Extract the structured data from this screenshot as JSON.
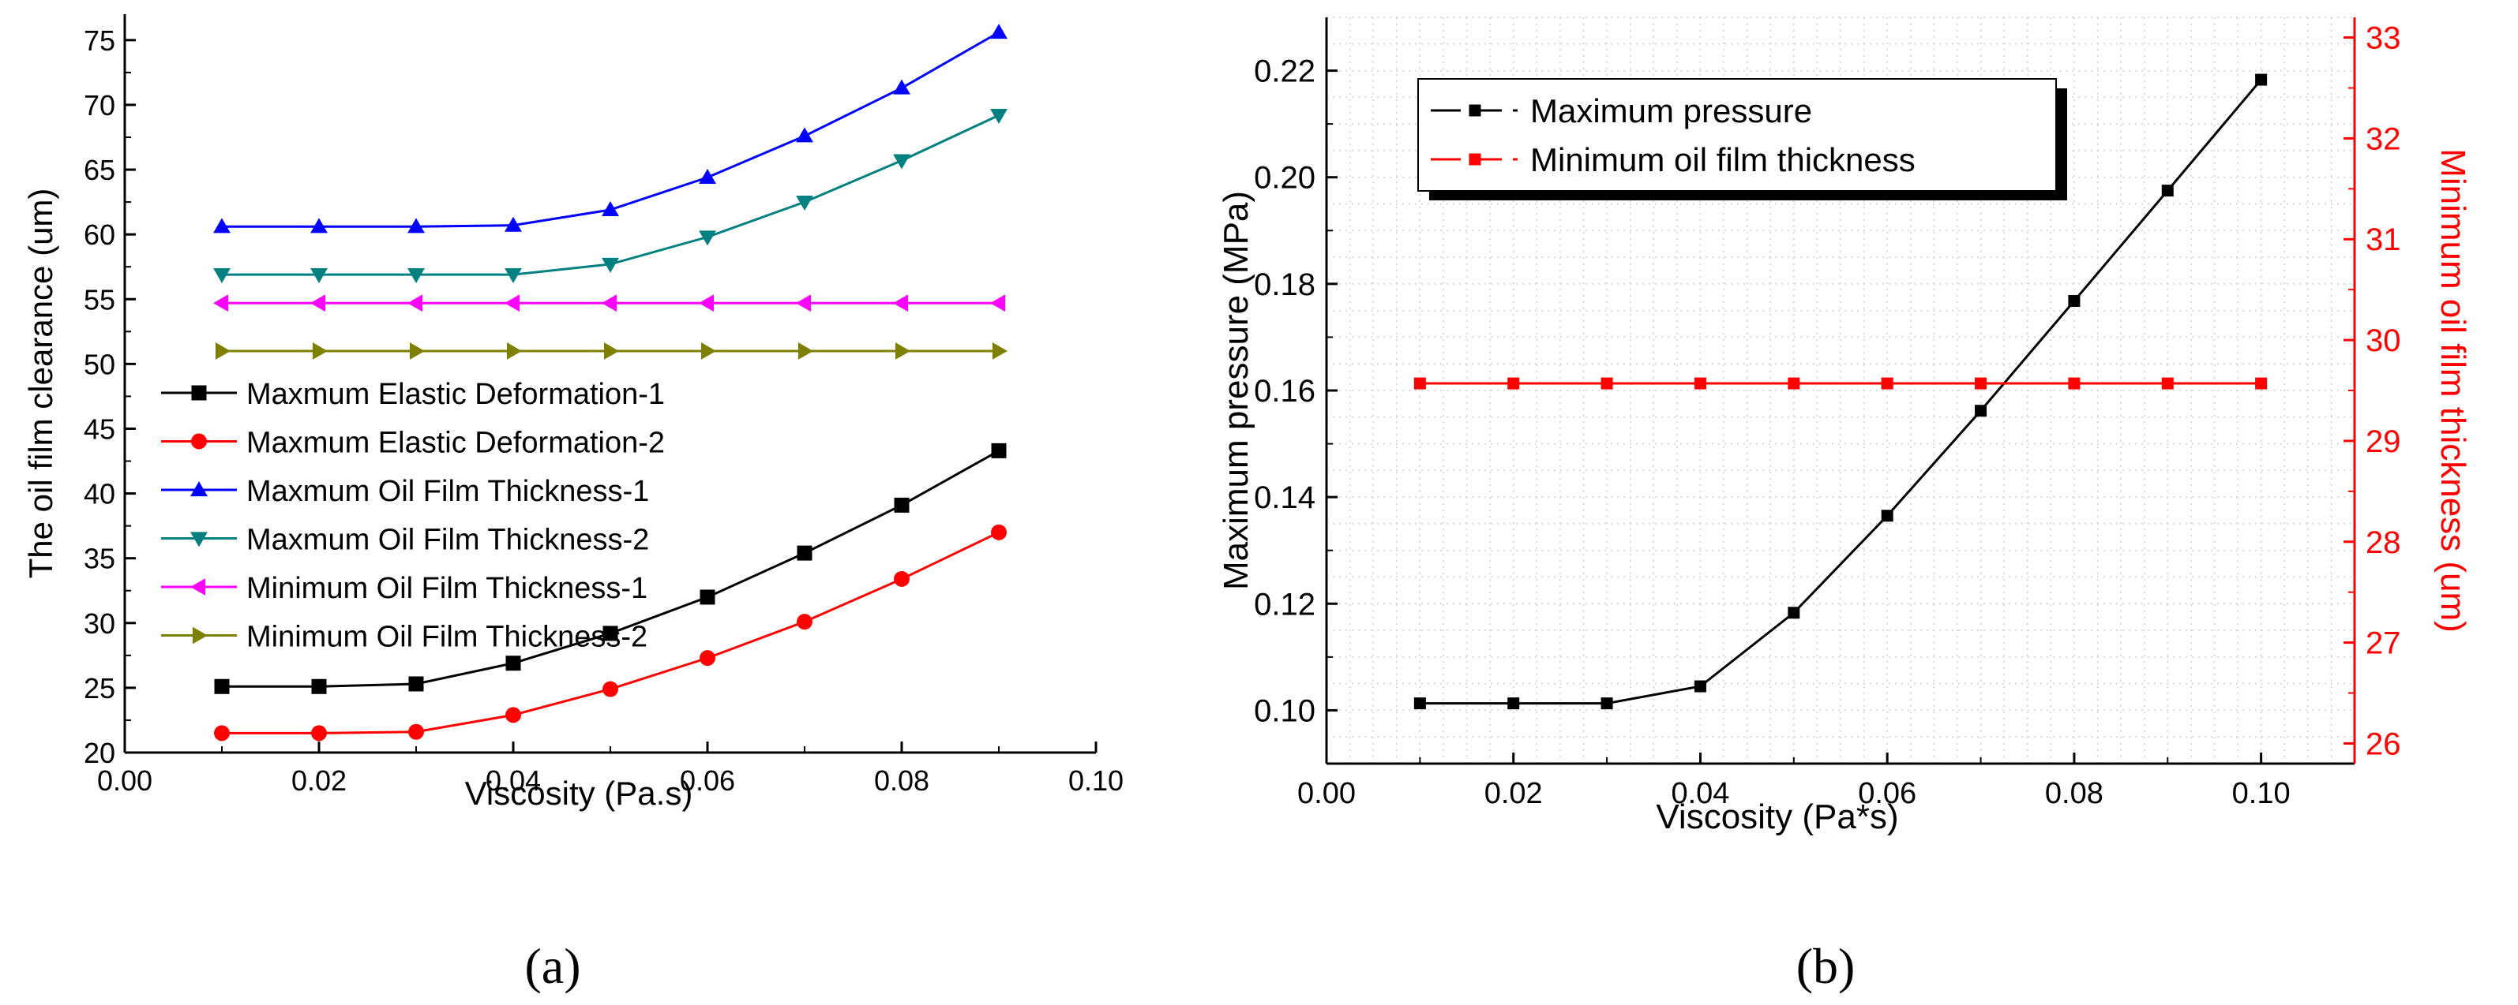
{
  "chart_data": [
    {
      "id": "a",
      "type": "line",
      "panel_label": "(a)",
      "panel_letter": "a",
      "title": "",
      "xlabel": "Viscosity (Pa.s)",
      "ylabel": "The oil film clearance (um)",
      "xlim": [
        0.0,
        0.1
      ],
      "ylim": [
        20,
        77
      ],
      "xticks": [
        0.0,
        0.02,
        0.04,
        0.06,
        0.08,
        0.1
      ],
      "xtick_labels": [
        "0.00",
        "0.02",
        "0.04",
        "0.06",
        "0.08",
        "0.10"
      ],
      "yticks": [
        20,
        25,
        30,
        35,
        40,
        45,
        50,
        55,
        60,
        65,
        70,
        75
      ],
      "ytick_labels": [
        "20",
        "25",
        "30",
        "35",
        "40",
        "45",
        "50",
        "55",
        "60",
        "65",
        "70",
        "75"
      ],
      "grid": false,
      "legend_position": "center-left",
      "x": [
        0.01,
        0.02,
        0.03,
        0.04,
        0.05,
        0.06,
        0.07,
        0.08,
        0.09
      ],
      "series": [
        {
          "name": "Maxmum Elastic Deformation-1",
          "color": "#000000",
          "marker": "square",
          "values": [
            25.1,
            25.1,
            25.3,
            26.9,
            29.2,
            32.0,
            35.4,
            39.1,
            43.3
          ]
        },
        {
          "name": "Maxmum Elastic Deformation-2",
          "color": "#ff0000",
          "marker": "circle",
          "values": [
            21.5,
            21.5,
            21.6,
            22.9,
            24.9,
            27.3,
            30.1,
            33.4,
            37.0
          ]
        },
        {
          "name": "Maxmum Oil Film Thickness-1",
          "color": "#0000ff",
          "marker": "triangle-up",
          "values": [
            60.6,
            60.6,
            60.6,
            60.7,
            61.9,
            64.4,
            67.6,
            71.3,
            75.6
          ]
        },
        {
          "name": "Maxmum Oil Film Thickness-2",
          "color": "#008080",
          "marker": "triangle-down",
          "values": [
            56.9,
            56.9,
            56.9,
            56.9,
            57.7,
            59.8,
            62.5,
            65.7,
            69.2
          ]
        },
        {
          "name": "Minimum Oil Film Thickness-1",
          "color": "#ff00ff",
          "marker": "triangle-left",
          "values": [
            54.7,
            54.7,
            54.7,
            54.7,
            54.7,
            54.7,
            54.7,
            54.7,
            54.7
          ]
        },
        {
          "name": "Minimum Oil Film Thickness-2",
          "color": "#808000",
          "marker": "triangle-right",
          "values": [
            51.0,
            51.0,
            51.0,
            51.0,
            51.0,
            51.0,
            51.0,
            51.0,
            51.0
          ]
        }
      ]
    },
    {
      "id": "b",
      "type": "line",
      "panel_label": "(b)",
      "panel_letter": "b",
      "title": "",
      "xlabel": "Viscosity (Pa*s)",
      "ylabel": "Maximum pressure (MPa)",
      "y2label": "Minimum oil film thickness (um)",
      "xlim": [
        0.0,
        0.11
      ],
      "ylim": [
        0.09,
        0.23
      ],
      "y2lim": [
        25.8,
        33.2
      ],
      "xticks": [
        0.0,
        0.02,
        0.04,
        0.06,
        0.08,
        0.1
      ],
      "xtick_labels": [
        "0.00",
        "0.02",
        "0.04",
        "0.06",
        "0.08",
        "0.10"
      ],
      "yticks": [
        0.1,
        0.12,
        0.14,
        0.16,
        0.18,
        0.2,
        0.22
      ],
      "ytick_labels": [
        "0.10",
        "0.12",
        "0.14",
        "0.16",
        "0.18",
        "0.20",
        "0.22"
      ],
      "y2ticks": [
        26,
        27,
        28,
        29,
        30,
        31,
        32,
        33
      ],
      "y2tick_labels": [
        "26",
        "27",
        "28",
        "29",
        "30",
        "31",
        "32",
        "33"
      ],
      "grid": "dotted",
      "legend_position": "top-left",
      "x": [
        0.01,
        0.02,
        0.03,
        0.04,
        0.05,
        0.06,
        0.07,
        0.08,
        0.09,
        0.1
      ],
      "series": [
        {
          "name": "Maximum pressure",
          "color": "#000000",
          "marker": "square",
          "axis": "left",
          "values": [
            0.1013,
            0.1013,
            0.1013,
            0.1045,
            0.1183,
            0.1365,
            0.1562,
            0.1768,
            0.1975,
            0.2183
          ]
        },
        {
          "name": "Minimum oil film thickness",
          "color": "#ff0000",
          "marker": "square",
          "axis": "right",
          "values": [
            29.57,
            29.57,
            29.57,
            29.57,
            29.57,
            29.57,
            29.57,
            29.57,
            29.57,
            29.57
          ]
        }
      ]
    }
  ]
}
